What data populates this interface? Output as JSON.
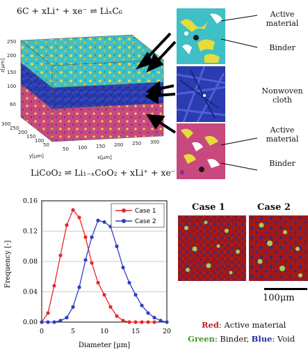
{
  "top": {
    "eq_anode": "6C + xLi⁺ + xe⁻ ⇌ LiₓC₆",
    "eq_cathode": "LiCoO₂ ⇌ Li₁₋ₓCoO₂ + xLi⁺ + xe⁻",
    "z_label": "z[μm]",
    "y_label": "y[μm]",
    "x_label": "x[μm]",
    "z_ticks": [
      "250",
      "200",
      "150",
      "100",
      "60"
    ],
    "y_ticks": [
      "300",
      "250",
      "200",
      "150",
      "100",
      "50"
    ],
    "x_ticks": [
      "50",
      "100",
      "150",
      "200",
      "250",
      "300"
    ],
    "callouts": {
      "anode_active": "Active material",
      "anode_binder": "Binder",
      "separator": "Nonwoven cloth",
      "cathode_active": "Active material",
      "cathode_binder": "Binder"
    },
    "colors": {
      "anode": "#3fbfc6",
      "binder": "#e6dc3a",
      "separator": "#2b3bb0",
      "cathode": "#c8497e"
    }
  },
  "chart_data": {
    "type": "line",
    "xlabel": "Diameter [μm]",
    "ylabel": "Frequency [-]",
    "xlim": [
      0,
      20
    ],
    "ylim": [
      0,
      0.16
    ],
    "x_ticks": [
      0,
      5,
      10,
      15,
      20
    ],
    "y_ticks": [
      "0.00",
      "0.04",
      "0.08",
      "0.12",
      "0.16"
    ],
    "legend_position": "top-right",
    "series": [
      {
        "name": "Case 1",
        "color": "#e8262b",
        "x": [
          0,
          1,
          2,
          3,
          4,
          5,
          6,
          7,
          8,
          9,
          10,
          11,
          12,
          13,
          14,
          15,
          16,
          17,
          18
        ],
        "y": [
          0.0,
          0.012,
          0.048,
          0.088,
          0.128,
          0.148,
          0.138,
          0.112,
          0.078,
          0.052,
          0.036,
          0.02,
          0.008,
          0.002,
          0.0,
          0.0,
          0.0,
          0.0,
          0.0
        ]
      },
      {
        "name": "Case 2",
        "color": "#2d3fc2",
        "x": [
          0,
          1,
          2,
          3,
          4,
          5,
          6,
          7,
          8,
          9,
          10,
          11,
          12,
          13,
          14,
          15,
          16,
          17,
          18,
          19,
          20
        ],
        "y": [
          0.0,
          0.0,
          0.0,
          0.002,
          0.006,
          0.02,
          0.046,
          0.082,
          0.112,
          0.134,
          0.132,
          0.126,
          0.1,
          0.072,
          0.052,
          0.036,
          0.022,
          0.012,
          0.006,
          0.002,
          0.0
        ]
      }
    ]
  },
  "cases": {
    "case1_title": "Case 1",
    "case2_title": "Case 2",
    "scale_label": "100μm",
    "legend_red_key": "Red",
    "legend_red_text": ": Active material",
    "legend_green_key": "Green",
    "legend_green_text": ": Binder, ",
    "legend_blue_key": "Blue",
    "legend_blue_text": ": Void",
    "colors": {
      "active": "#a01818",
      "binder": "#9ad15a",
      "void": "#1b2e9a"
    }
  }
}
